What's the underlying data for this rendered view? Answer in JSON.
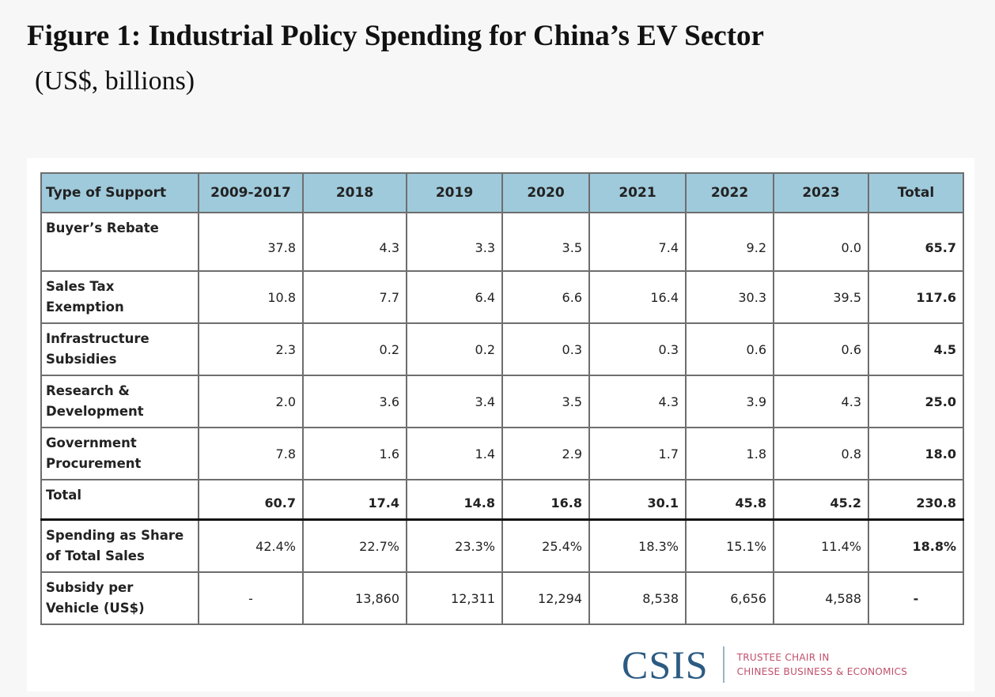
{
  "title": "Figure 1: Industrial Policy Spending for China’s EV Sector",
  "subtitle": "(US$, billions)",
  "logo": {
    "name": "CSIS",
    "line1": "TRUSTEE CHAIR IN",
    "line2": "CHINESE BUSINESS & ECONOMICS"
  },
  "colors": {
    "header_bg": "#9fcadb",
    "logo_blue": "#2c5b82",
    "logo_red": "#c0506a"
  },
  "chart_data": {
    "type": "table",
    "title": "Figure 1: Industrial Policy Spending for China’s EV Sector",
    "subtitle": "(US$, billions)",
    "columns": [
      "Type of Support",
      "2009-2017",
      "2018",
      "2019",
      "2020",
      "2021",
      "2022",
      "2023",
      "Total"
    ],
    "rows": [
      {
        "label": [
          "Buyer’s Rebate",
          ""
        ],
        "values": [
          "37.8",
          "4.3",
          "3.3",
          "3.5",
          "7.4",
          "9.2",
          "0.0",
          "65.7"
        ]
      },
      {
        "label": [
          "Sales Tax",
          "Exemption"
        ],
        "values": [
          "10.8",
          "7.7",
          "6.4",
          "6.6",
          "16.4",
          "30.3",
          "39.5",
          "117.6"
        ]
      },
      {
        "label": [
          "Infrastructure",
          "Subsidies"
        ],
        "values": [
          "2.3",
          "0.2",
          "0.2",
          "0.3",
          "0.3",
          "0.6",
          "0.6",
          "4.5"
        ]
      },
      {
        "label": [
          "Research &",
          "Development"
        ],
        "values": [
          "2.0",
          "3.6",
          "3.4",
          "3.5",
          "4.3",
          "3.9",
          "4.3",
          "25.0"
        ]
      },
      {
        "label": [
          "Government",
          "Procurement"
        ],
        "values": [
          "7.8",
          "1.6",
          "1.4",
          "2.9",
          "1.7",
          "1.8",
          "0.8",
          "18.0"
        ]
      },
      {
        "label": [
          "Total",
          ""
        ],
        "values": [
          "60.7",
          "17.4",
          "14.8",
          "16.8",
          "30.1",
          "45.8",
          "45.2",
          "230.8"
        ]
      },
      {
        "label": [
          "Spending as Share",
          "of Total Sales"
        ],
        "values": [
          "42.4%",
          "22.7%",
          "23.3%",
          "25.4%",
          "18.3%",
          "15.1%",
          "11.4%",
          "18.8%"
        ]
      },
      {
        "label": [
          "Subsidy per",
          "Vehicle (US$)"
        ],
        "values": [
          "-",
          "13,860",
          "12,311",
          "12,294",
          "8,538",
          "6,656",
          "4,588",
          "-"
        ]
      }
    ]
  }
}
